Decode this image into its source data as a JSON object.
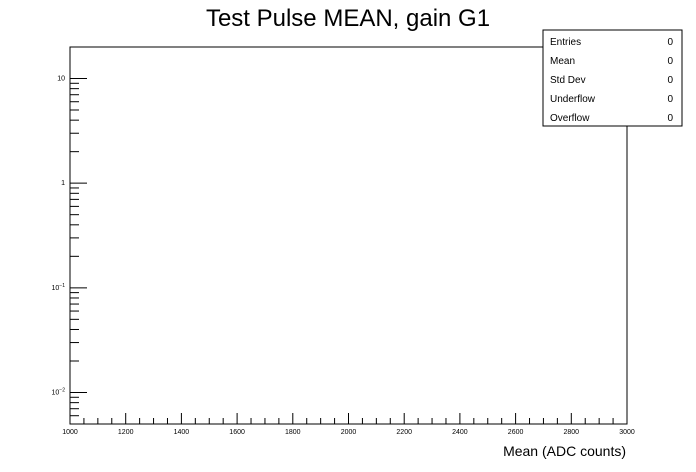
{
  "chart_data": {
    "type": "bar",
    "title": "Test Pulse MEAN, gain G1",
    "xlabel": "Mean (ADC counts)",
    "ylabel": "",
    "xlim": [
      1000,
      3000
    ],
    "ylim": [
      0.005,
      20
    ],
    "y_scale": "log",
    "x_ticks": [
      "1000",
      "1200",
      "1400",
      "1600",
      "1800",
      "2000",
      "2200",
      "2400",
      "2600",
      "2800",
      "3000"
    ],
    "y_ticks": [
      {
        "value": 10,
        "label": "10"
      },
      {
        "value": 1,
        "label": "1"
      },
      {
        "value": 0.1,
        "base": "10",
        "exp": "−1"
      },
      {
        "value": 0.01,
        "base": "10",
        "exp": "−2"
      }
    ],
    "values": [],
    "grid": false,
    "stats_box": {
      "placement": "top-right",
      "rows": [
        {
          "label": "Entries",
          "value": "0"
        },
        {
          "label": "Mean",
          "value": "0"
        },
        {
          "label": "Std Dev",
          "value": "0"
        },
        {
          "label": "Underflow",
          "value": "0"
        },
        {
          "label": "Overflow",
          "value": "0"
        }
      ]
    }
  }
}
